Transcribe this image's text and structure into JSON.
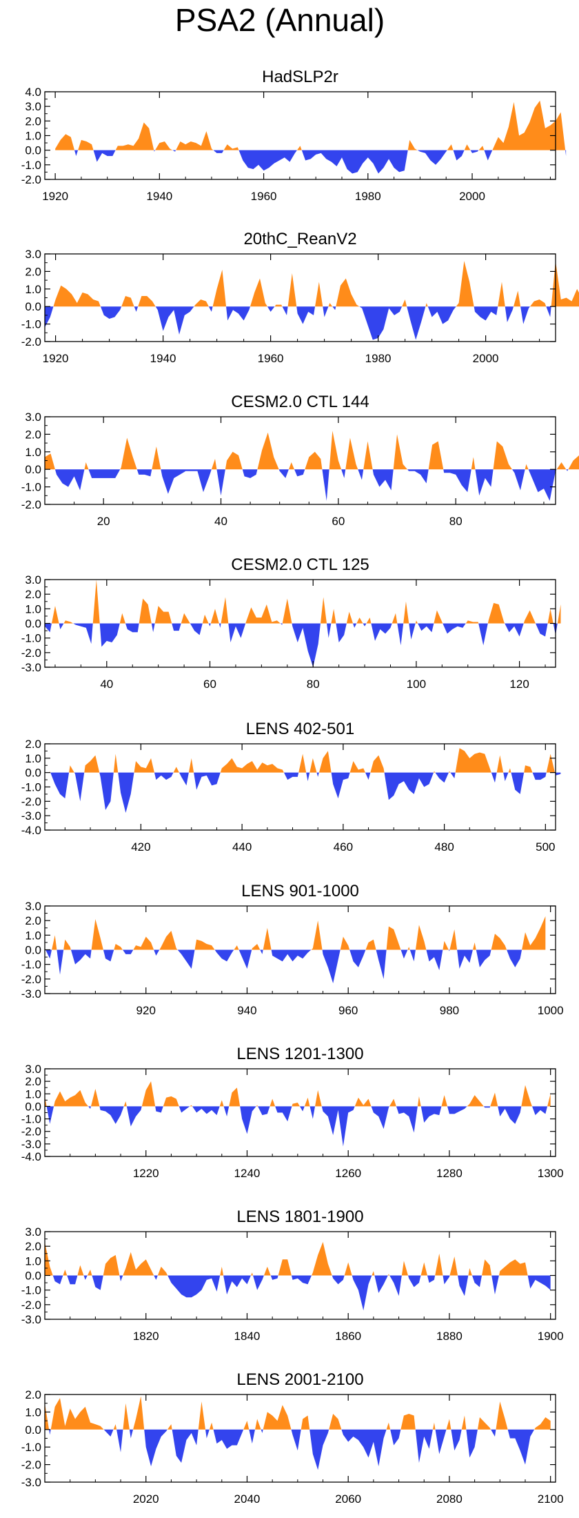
{
  "figure_title": "PSA2 (Annual)",
  "colors": {
    "positive": "#ff8c1a",
    "negative": "#3344ee",
    "axis": "#000000"
  },
  "chart_data": [
    {
      "type": "area",
      "title": "HadSLP2r",
      "xlim": [
        1918,
        2016
      ],
      "ylim": [
        -2.0,
        4.0
      ],
      "yticks": [
        -2.0,
        -1.0,
        0.0,
        1.0,
        2.0,
        3.0,
        4.0
      ],
      "xticks": [
        1920,
        1940,
        1960,
        1980,
        2000
      ],
      "x_start": 1920,
      "values": [
        0.1,
        0.7,
        1.1,
        0.9,
        -0.4,
        0.7,
        0.6,
        0.4,
        -0.8,
        -0.2,
        -0.4,
        -0.4,
        0.3,
        0.3,
        0.4,
        0.3,
        0.8,
        1.9,
        1.5,
        -0.1,
        0.5,
        0.6,
        0.1,
        -0.1,
        0.6,
        0.4,
        0.6,
        0.5,
        0.3,
        1.3,
        0.1,
        -0.2,
        -0.2,
        0.4,
        0.1,
        0.2,
        -0.7,
        -1.2,
        -1.3,
        -1.0,
        -1.4,
        -1.2,
        -0.9,
        -0.7,
        -0.5,
        -0.8,
        -0.2,
        0.3,
        -0.7,
        -0.6,
        -0.3,
        -0.2,
        -0.6,
        -0.8,
        -1.1,
        -0.5,
        -1.3,
        -1.6,
        -1.5,
        -0.9,
        -0.5,
        -0.9,
        -1.6,
        -1.2,
        -0.6,
        -1.2,
        -1.5,
        -1.4,
        0.7,
        0.1,
        -0.1,
        -0.2,
        -0.7,
        -1.0,
        -0.6,
        -0.1,
        0.4,
        -0.7,
        -0.4,
        0.4,
        -0.2,
        -0.1,
        0.3,
        -0.7,
        0.1,
        0.9,
        0.5,
        1.6,
        3.3,
        1.0,
        1.2,
        1.9,
        2.9,
        3.4,
        1.5,
        1.7,
        2.0,
        2.6,
        -0.4
      ]
    },
    {
      "type": "area",
      "title": "20thC_ReanV2",
      "xlim": [
        1918,
        2013
      ],
      "ylim": [
        -2.0,
        3.0
      ],
      "yticks": [
        -2.0,
        -1.0,
        0.0,
        1.0,
        2.0,
        3.0
      ],
      "xticks": [
        1920,
        1940,
        1960,
        1980,
        2000
      ],
      "x_start": 1918,
      "values": [
        -1.2,
        -0.6,
        0.4,
        1.2,
        1.0,
        0.7,
        0.2,
        0.8,
        0.7,
        0.4,
        0.3,
        -0.5,
        -0.7,
        -0.6,
        -0.2,
        0.6,
        0.5,
        -0.3,
        0.6,
        0.6,
        0.3,
        -0.2,
        -1.4,
        -0.6,
        -0.2,
        -1.6,
        -0.5,
        -0.3,
        0.1,
        0.4,
        0.3,
        -0.3,
        1.0,
        2.1,
        -0.8,
        -0.2,
        -0.4,
        -0.8,
        -0.2,
        0.8,
        1.6,
        0.2,
        -0.3,
        0.1,
        0.1,
        -0.5,
        1.9,
        -0.4,
        -1.0,
        -0.3,
        -0.5,
        1.4,
        -0.6,
        0.2,
        -0.2,
        1.2,
        1.6,
        0.7,
        0.1,
        -0.1,
        -1.0,
        -1.9,
        -1.8,
        -1.3,
        -0.1,
        -0.5,
        -0.3,
        0.4,
        -0.8,
        -1.9,
        -0.9,
        0.2,
        -0.6,
        -0.3,
        -1.0,
        -0.8,
        -0.2,
        0.2,
        2.6,
        1.4,
        -0.3,
        -0.6,
        -0.8,
        -0.3,
        -0.5,
        1.4,
        -0.9,
        -0.2,
        0.9,
        -1.0,
        -0.1,
        0.3,
        0.4,
        0.2,
        -0.6,
        2.6,
        0.4,
        0.5,
        0.3,
        1.0,
        0.4,
        2.3,
        0.2,
        -0.3
      ]
    },
    {
      "type": "area",
      "title": "CESM2.0 CTL 144",
      "xlim": [
        10,
        97
      ],
      "ylim": [
        -2.0,
        3.0
      ],
      "yticks": [
        -2.0,
        -1.0,
        0.0,
        1.0,
        2.0,
        3.0
      ],
      "xticks": [
        20,
        40,
        60,
        80
      ],
      "x_start": 10,
      "values": [
        0.7,
        0.9,
        -0.3,
        -0.8,
        -1.0,
        -0.4,
        -1.2,
        0.4,
        -0.5,
        -0.5,
        -0.5,
        -0.5,
        -0.5,
        0.1,
        1.8,
        0.7,
        -0.3,
        -0.3,
        -0.4,
        1.3,
        -0.4,
        -1.4,
        -0.5,
        -0.3,
        -0.1,
        -0.1,
        -0.1,
        -1.3,
        -0.4,
        0.6,
        -1.5,
        0.5,
        1.0,
        0.8,
        -0.4,
        -0.5,
        -0.3,
        1.1,
        2.1,
        0.7,
        -0.1,
        -0.5,
        0.4,
        -0.4,
        -0.3,
        0.7,
        1.0,
        0.6,
        -1.8,
        2.2,
        0.5,
        -0.5,
        1.8,
        0.3,
        -0.6,
        1.6,
        -0.3,
        -1.0,
        -0.6,
        -1.2,
        2.0,
        0.3,
        -0.1,
        -0.1,
        -0.3,
        -0.8,
        1.4,
        1.6,
        -0.2,
        -0.2,
        -0.3,
        -0.9,
        -1.3,
        0.7,
        -1.5,
        -0.5,
        -1.0,
        1.6,
        1.3,
        0.3,
        -0.2,
        -1.2,
        0.3,
        -0.5,
        -1.3,
        -1.1,
        -1.8,
        -0.1,
        0.4,
        -0.1,
        0.5,
        0.8,
        0.8
      ]
    },
    {
      "type": "area",
      "title": "CESM2.0 CTL 125",
      "xlim": [
        28,
        127
      ],
      "ylim": [
        -3.0,
        3.0
      ],
      "yticks": [
        -3.0,
        -2.0,
        -1.0,
        0.0,
        1.0,
        2.0,
        3.0
      ],
      "xticks": [
        40,
        60,
        80,
        100,
        120
      ],
      "x_start": 28,
      "values": [
        -0.2,
        -0.6,
        1.2,
        -0.4,
        0.2,
        0.1,
        -0.1,
        -0.2,
        -0.3,
        -1.4,
        3.0,
        -1.6,
        -1.2,
        -1.3,
        -0.8,
        0.7,
        -0.4,
        -0.6,
        -0.6,
        1.7,
        1.3,
        -0.6,
        1.2,
        0.8,
        0.8,
        -0.5,
        -0.5,
        0.7,
        0.1,
        -0.5,
        -0.8,
        0.6,
        -0.2,
        1.0,
        -0.3,
        1.8,
        -1.3,
        -0.2,
        -1.0,
        0.1,
        1.1,
        0.4,
        0.4,
        1.3,
        0.1,
        0.2,
        -0.1,
        1.7,
        -0.2,
        -1.3,
        -0.3,
        -1.9,
        -3.0,
        -1.4,
        1.8,
        -1.0,
        1.0,
        -1.3,
        -0.8,
        0.8,
        -0.3,
        0.4,
        -0.2,
        0.4,
        -1.2,
        -0.4,
        -0.7,
        -0.3,
        0.7,
        -1.5,
        1.5,
        -1.1,
        0.2,
        -0.5,
        -0.2,
        -0.6,
        0.9,
        0.1,
        -0.7,
        -0.4,
        -0.2,
        -0.3,
        0.2,
        0.1,
        0.1,
        -1.5,
        0.2,
        1.4,
        1.3,
        0.1,
        -0.6,
        -0.2,
        -0.9,
        0.2,
        0.9,
        0.1,
        -0.7,
        -0.9,
        1.0,
        -0.8,
        1.3
      ]
    },
    {
      "type": "area",
      "title": "LENS 402-501",
      "xlim": [
        401,
        502
      ],
      "ylim": [
        -4.0,
        2.0
      ],
      "yticks": [
        -4.0,
        -3.0,
        -2.0,
        -1.0,
        0.0,
        1.0,
        2.0
      ],
      "xticks": [
        420,
        440,
        460,
        480,
        500
      ],
      "x_start": 402,
      "values": [
        0.1,
        -0.8,
        -1.5,
        -1.8,
        0.5,
        -0.1,
        -2.0,
        0.5,
        0.8,
        1.2,
        -0.3,
        -2.6,
        -2.0,
        1.3,
        -1.4,
        -2.8,
        -1.5,
        0.8,
        0.4,
        0.3,
        1.0,
        -0.5,
        -0.2,
        -0.5,
        -0.3,
        0.4,
        -0.3,
        -0.9,
        1.0,
        -1.2,
        -0.3,
        -0.2,
        -0.9,
        -0.8,
        0.3,
        0.6,
        1.0,
        0.4,
        0.3,
        0.6,
        0.8,
        0.2,
        0.7,
        0.5,
        0.6,
        0.3,
        0.2,
        -0.5,
        -0.3,
        -0.3,
        1.3,
        -0.6,
        1.0,
        -0.3,
        1.0,
        1.5,
        -0.8,
        -1.8,
        -0.5,
        -0.4,
        0.8,
        0.2,
        0.3,
        -0.5,
        0.8,
        1.2,
        0.3,
        -1.9,
        -1.6,
        -0.8,
        -0.6,
        -1.2,
        -1.5,
        -0.4,
        -1.0,
        -0.8,
        0.1,
        -0.4,
        -0.7,
        0.1,
        -0.4,
        1.7,
        1.5,
        1.0,
        1.3,
        1.4,
        1.3,
        0.3,
        -0.7,
        1.2,
        -0.6,
        0.3,
        -1.2,
        -1.5,
        0.5,
        0.4,
        -0.5,
        -0.5,
        -0.3,
        1.3,
        -0.2,
        -0.1
      ]
    },
    {
      "type": "area",
      "title": "LENS 901-1000",
      "xlim": [
        900,
        1001
      ],
      "ylim": [
        -3.0,
        3.0
      ],
      "yticks": [
        -3.0,
        -2.0,
        -1.0,
        0.0,
        1.0,
        2.0,
        3.0
      ],
      "xticks": [
        920,
        940,
        960,
        980,
        1000
      ],
      "x_start": 900,
      "values": [
        0.1,
        -0.6,
        1.0,
        -1.7,
        0.7,
        0.2,
        -1.0,
        -0.7,
        -0.3,
        -0.6,
        2.1,
        0.8,
        -0.6,
        -0.8,
        0.4,
        0.2,
        -0.3,
        -0.3,
        0.3,
        0.2,
        0.9,
        0.5,
        -0.4,
        0.2,
        0.9,
        1.3,
        0.1,
        -0.3,
        -0.8,
        -1.3,
        0.7,
        0.6,
        0.4,
        0.3,
        -0.2,
        -0.6,
        -0.8,
        -0.2,
        0.3,
        -0.5,
        -1.3,
        0.1,
        0.4,
        -0.3,
        1.5,
        -0.4,
        -0.6,
        -0.8,
        -0.3,
        -0.8,
        -0.4,
        -0.6,
        -0.2,
        0.1,
        2.0,
        -0.3,
        -1.2,
        -2.3,
        -0.7,
        0.9,
        0.3,
        -0.8,
        -1.2,
        -0.4,
        0.5,
        0.7,
        -0.7,
        -2.0,
        1.6,
        1.4,
        0.4,
        -0.6,
        0.2,
        -0.8,
        1.7,
        0.6,
        -0.8,
        -0.5,
        -1.4,
        0.6,
        -0.1,
        1.4,
        -1.3,
        -0.4,
        -0.9,
        0.5,
        -1.2,
        -0.7,
        -0.4,
        1.1,
        0.8,
        0.3,
        -0.6,
        -1.2,
        -0.6,
        1.2,
        0.3,
        0.8,
        1.5,
        2.3
      ]
    },
    {
      "type": "area",
      "title": "LENS 1201-1300",
      "xlim": [
        1200,
        1301
      ],
      "ylim": [
        -4.0,
        3.0
      ],
      "yticks": [
        -4.0,
        -3.0,
        -2.0,
        -1.0,
        0.0,
        1.0,
        2.0,
        3.0
      ],
      "xticks": [
        1220,
        1240,
        1260,
        1280,
        1300
      ],
      "x_start": 1200,
      "values": [
        0.8,
        -1.4,
        0.4,
        1.2,
        0.4,
        0.7,
        0.9,
        1.3,
        0.3,
        -0.2,
        1.4,
        -0.3,
        -0.4,
        -0.7,
        -1.4,
        -0.7,
        0.4,
        -1.6,
        -0.8,
        -0.3,
        1.3,
        2.0,
        -0.4,
        -0.5,
        0.7,
        0.8,
        0.6,
        -0.5,
        -0.2,
        0.1,
        -0.5,
        -0.2,
        -0.6,
        -0.3,
        -0.7,
        0.5,
        -0.8,
        1.1,
        1.5,
        -1.0,
        -2.2,
        -0.4,
        0.1,
        -0.7,
        -0.6,
        0.6,
        -0.5,
        -0.5,
        -1.2,
        0.2,
        0.3,
        -0.4,
        0.7,
        -1.0,
        1.3,
        -0.4,
        -0.8,
        -2.3,
        -0.3,
        -3.2,
        -0.5,
        -0.3,
        0.7,
        0.1,
        0.6,
        -0.5,
        -0.8,
        -1.8,
        -0.1,
        0.6,
        -0.6,
        -0.5,
        -0.8,
        -2.1,
        0.8,
        -1.3,
        -0.8,
        -0.6,
        -0.7,
        0.9,
        -0.6,
        -0.6,
        -0.4,
        -0.2,
        0.2,
        0.9,
        0.4,
        -0.1,
        -0.1,
        1.1,
        -0.8,
        -0.2,
        -1.0,
        -1.4,
        -0.5,
        1.7,
        0.4,
        -0.7,
        -0.3,
        -0.6,
        1.0
      ]
    },
    {
      "type": "area",
      "title": "LENS 1801-1900",
      "xlim": [
        1800,
        1901
      ],
      "ylim": [
        -3.0,
        3.0
      ],
      "yticks": [
        -3.0,
        -2.0,
        -1.0,
        0.0,
        1.0,
        2.0,
        3.0
      ],
      "xticks": [
        1820,
        1840,
        1860,
        1880,
        1900
      ],
      "x_start": 1800,
      "values": [
        2.3,
        0.6,
        -0.4,
        -0.6,
        0.4,
        -0.6,
        -0.6,
        0.7,
        -0.3,
        0.4,
        -0.8,
        -1.0,
        0.8,
        1.2,
        1.4,
        -0.4,
        0.5,
        1.6,
        0.4,
        0.8,
        1.1,
        0.4,
        -0.3,
        0.6,
        0.2,
        -0.5,
        -0.9,
        -1.3,
        -1.5,
        -1.5,
        -1.3,
        -1.0,
        -0.3,
        -0.2,
        -1.1,
        0.6,
        -1.3,
        -0.4,
        -0.8,
        -0.2,
        -0.6,
        0.2,
        -1.0,
        -0.3,
        0.6,
        -0.3,
        -0.2,
        1.1,
        1.1,
        -0.3,
        -0.2,
        -0.5,
        -0.6,
        0.2,
        1.4,
        2.3,
        0.8,
        -0.2,
        -0.6,
        -0.3,
        0.9,
        -0.3,
        -1.0,
        -2.4,
        -0.6,
        0.3,
        -1.2,
        -0.6,
        0.1,
        -0.5,
        -1.4,
        1.0,
        -0.2,
        -0.8,
        -0.5,
        0.9,
        -0.5,
        -0.3,
        1.5,
        -0.6,
        -0.1,
        1.3,
        -0.7,
        -1.4,
        0.5,
        -0.5,
        -0.8,
        1.1,
        0.7,
        -1.3,
        0.3,
        0.6,
        0.9,
        1.1,
        0.8,
        0.9,
        -0.9,
        -0.3,
        -0.5,
        -0.7,
        -1.0
      ]
    },
    {
      "type": "area",
      "title": "LENS 2001-2100",
      "xlim": [
        2000,
        2101
      ],
      "ylim": [
        -3.0,
        2.0
      ],
      "yticks": [
        -3.0,
        -2.0,
        -1.0,
        0.0,
        1.0,
        2.0
      ],
      "xticks": [
        2020,
        2040,
        2060,
        2080,
        2100
      ],
      "x_start": 2000,
      "values": [
        1.5,
        -0.3,
        1.3,
        1.8,
        0.2,
        1.2,
        0.6,
        1.0,
        1.3,
        0.4,
        0.3,
        0.2,
        -0.1,
        -0.4,
        0.3,
        -1.3,
        1.5,
        -0.5,
        0.6,
        1.9,
        -1.0,
        -2.1,
        -1.1,
        -0.4,
        -0.1,
        0.3,
        -1.5,
        -1.9,
        -0.6,
        -0.2,
        -0.9,
        1.6,
        -0.5,
        0.4,
        -0.8,
        -0.6,
        -1.1,
        -0.9,
        -0.9,
        -0.2,
        0.5,
        -0.8,
        0.6,
        -0.2,
        1.0,
        0.8,
        0.5,
        1.4,
        0.8,
        -0.3,
        -1.2,
        0.6,
        0.8,
        -1.4,
        -2.3,
        -0.9,
        -0.2,
        0.9,
        0.6,
        -0.3,
        -0.7,
        -0.4,
        -0.6,
        -1.0,
        -1.6,
        -0.7,
        -2.1,
        -0.5,
        0.4,
        -0.9,
        -0.5,
        0.8,
        0.9,
        0.8,
        -1.9,
        -0.4,
        -1.1,
        0.4,
        -1.4,
        -0.4,
        0.6,
        -1.2,
        -0.6,
        0.8,
        -1.6,
        -1.0,
        0.7,
        0.4,
        0.1,
        -0.4,
        1.6,
        0.6,
        -0.5,
        -0.5,
        -1.2,
        -2.0,
        -0.4,
        0.1,
        0.3,
        0.7,
        0.5
      ]
    }
  ]
}
